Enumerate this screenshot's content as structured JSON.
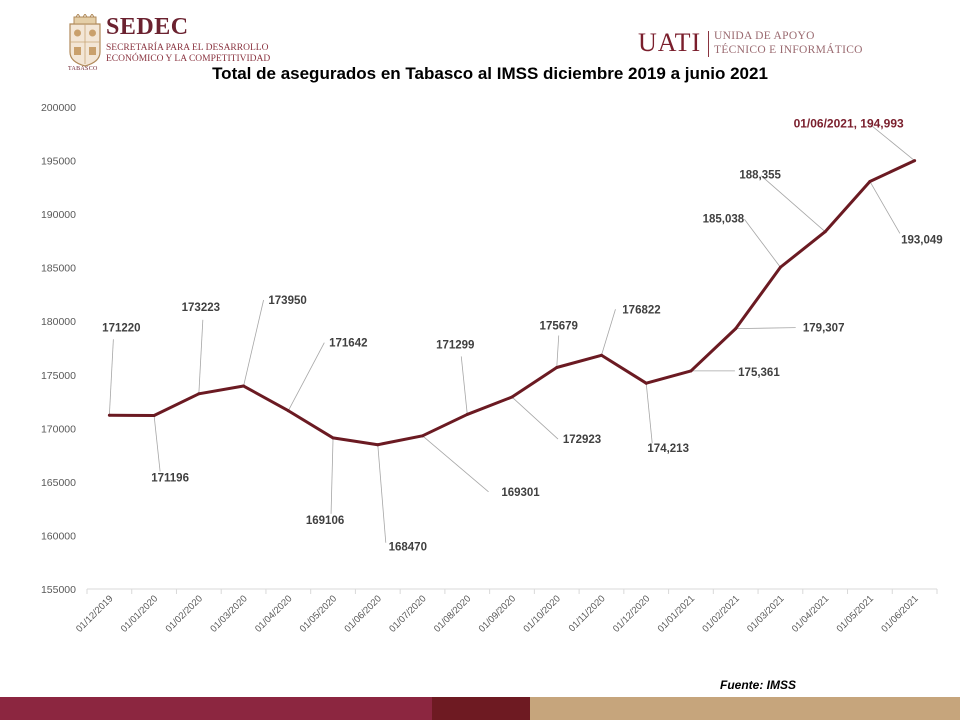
{
  "header": {
    "left_logo": {
      "title": "SEDEC",
      "subtitle_line1": "SECRETARÍA PARA EL DESARROLLO",
      "subtitle_line2": "ECONÓMICO Y LA COMPETITIVIDAD",
      "crest_label": "TABASCO"
    },
    "right_logo": {
      "title": "UATI",
      "subtitle_line1": "UNIDA DE APOYO",
      "subtitle_line2": "TÉCNICO E INFORMÁTICO"
    }
  },
  "chart_data": {
    "type": "line",
    "title": "Total de asegurados en Tabasco al IMSS diciembre 2019 a junio 2021",
    "xlabel": "",
    "ylabel": "",
    "ylim": [
      155000,
      200000
    ],
    "yticks": [
      155000,
      160000,
      165000,
      170000,
      175000,
      180000,
      185000,
      190000,
      195000,
      200000
    ],
    "ytick_labels": [
      "155000",
      "160000",
      "165000",
      "170000",
      "175000",
      "180000",
      "185000",
      "190000",
      "195000",
      "200000"
    ],
    "categories": [
      "01/12/2019",
      "01/01/2020",
      "01/02/2020",
      "01/03/2020",
      "01/04/2020",
      "01/05/2020",
      "01/06/2020",
      "01/07/2020",
      "01/08/2020",
      "01/09/2020",
      "01/10/2020",
      "01/11/2020",
      "01/12/2020",
      "01/01/2021",
      "01/02/2021",
      "01/03/2021",
      "01/04/2021",
      "01/05/2021",
      "01/06/2021"
    ],
    "series": [
      {
        "name": "Total de asegurados",
        "color": "#6b1a22",
        "values": [
          171220,
          171196,
          173223,
          173950,
          171642,
          169106,
          168470,
          169301,
          171299,
          172923,
          175679,
          176822,
          174213,
          175361,
          179307,
          185038,
          188355,
          193049,
          194993
        ],
        "labels": [
          "171220",
          "171196",
          "173223",
          "173950",
          "171642",
          "169106",
          "168470",
          "169301",
          "171299",
          "172923",
          "175679",
          "176822",
          "174,213",
          "175,361",
          "179,307",
          "185,038",
          "188,355",
          "193,049",
          "01/06/2021, 194,993"
        ]
      }
    ],
    "highlight_label_color": "#7a1e2c",
    "grid": false,
    "legend": "none"
  },
  "source_note": "Fuente: IMSS",
  "colors": {
    "brand": "#7a1e2c",
    "footer_left": "#8c2640",
    "footer_mid": "#6e1a22",
    "footer_right": "#c6a57c",
    "callout_line": "#a6a6a6",
    "axis": "#d9d9d9",
    "tick_text": "#595959",
    "label_text": "#404040"
  }
}
